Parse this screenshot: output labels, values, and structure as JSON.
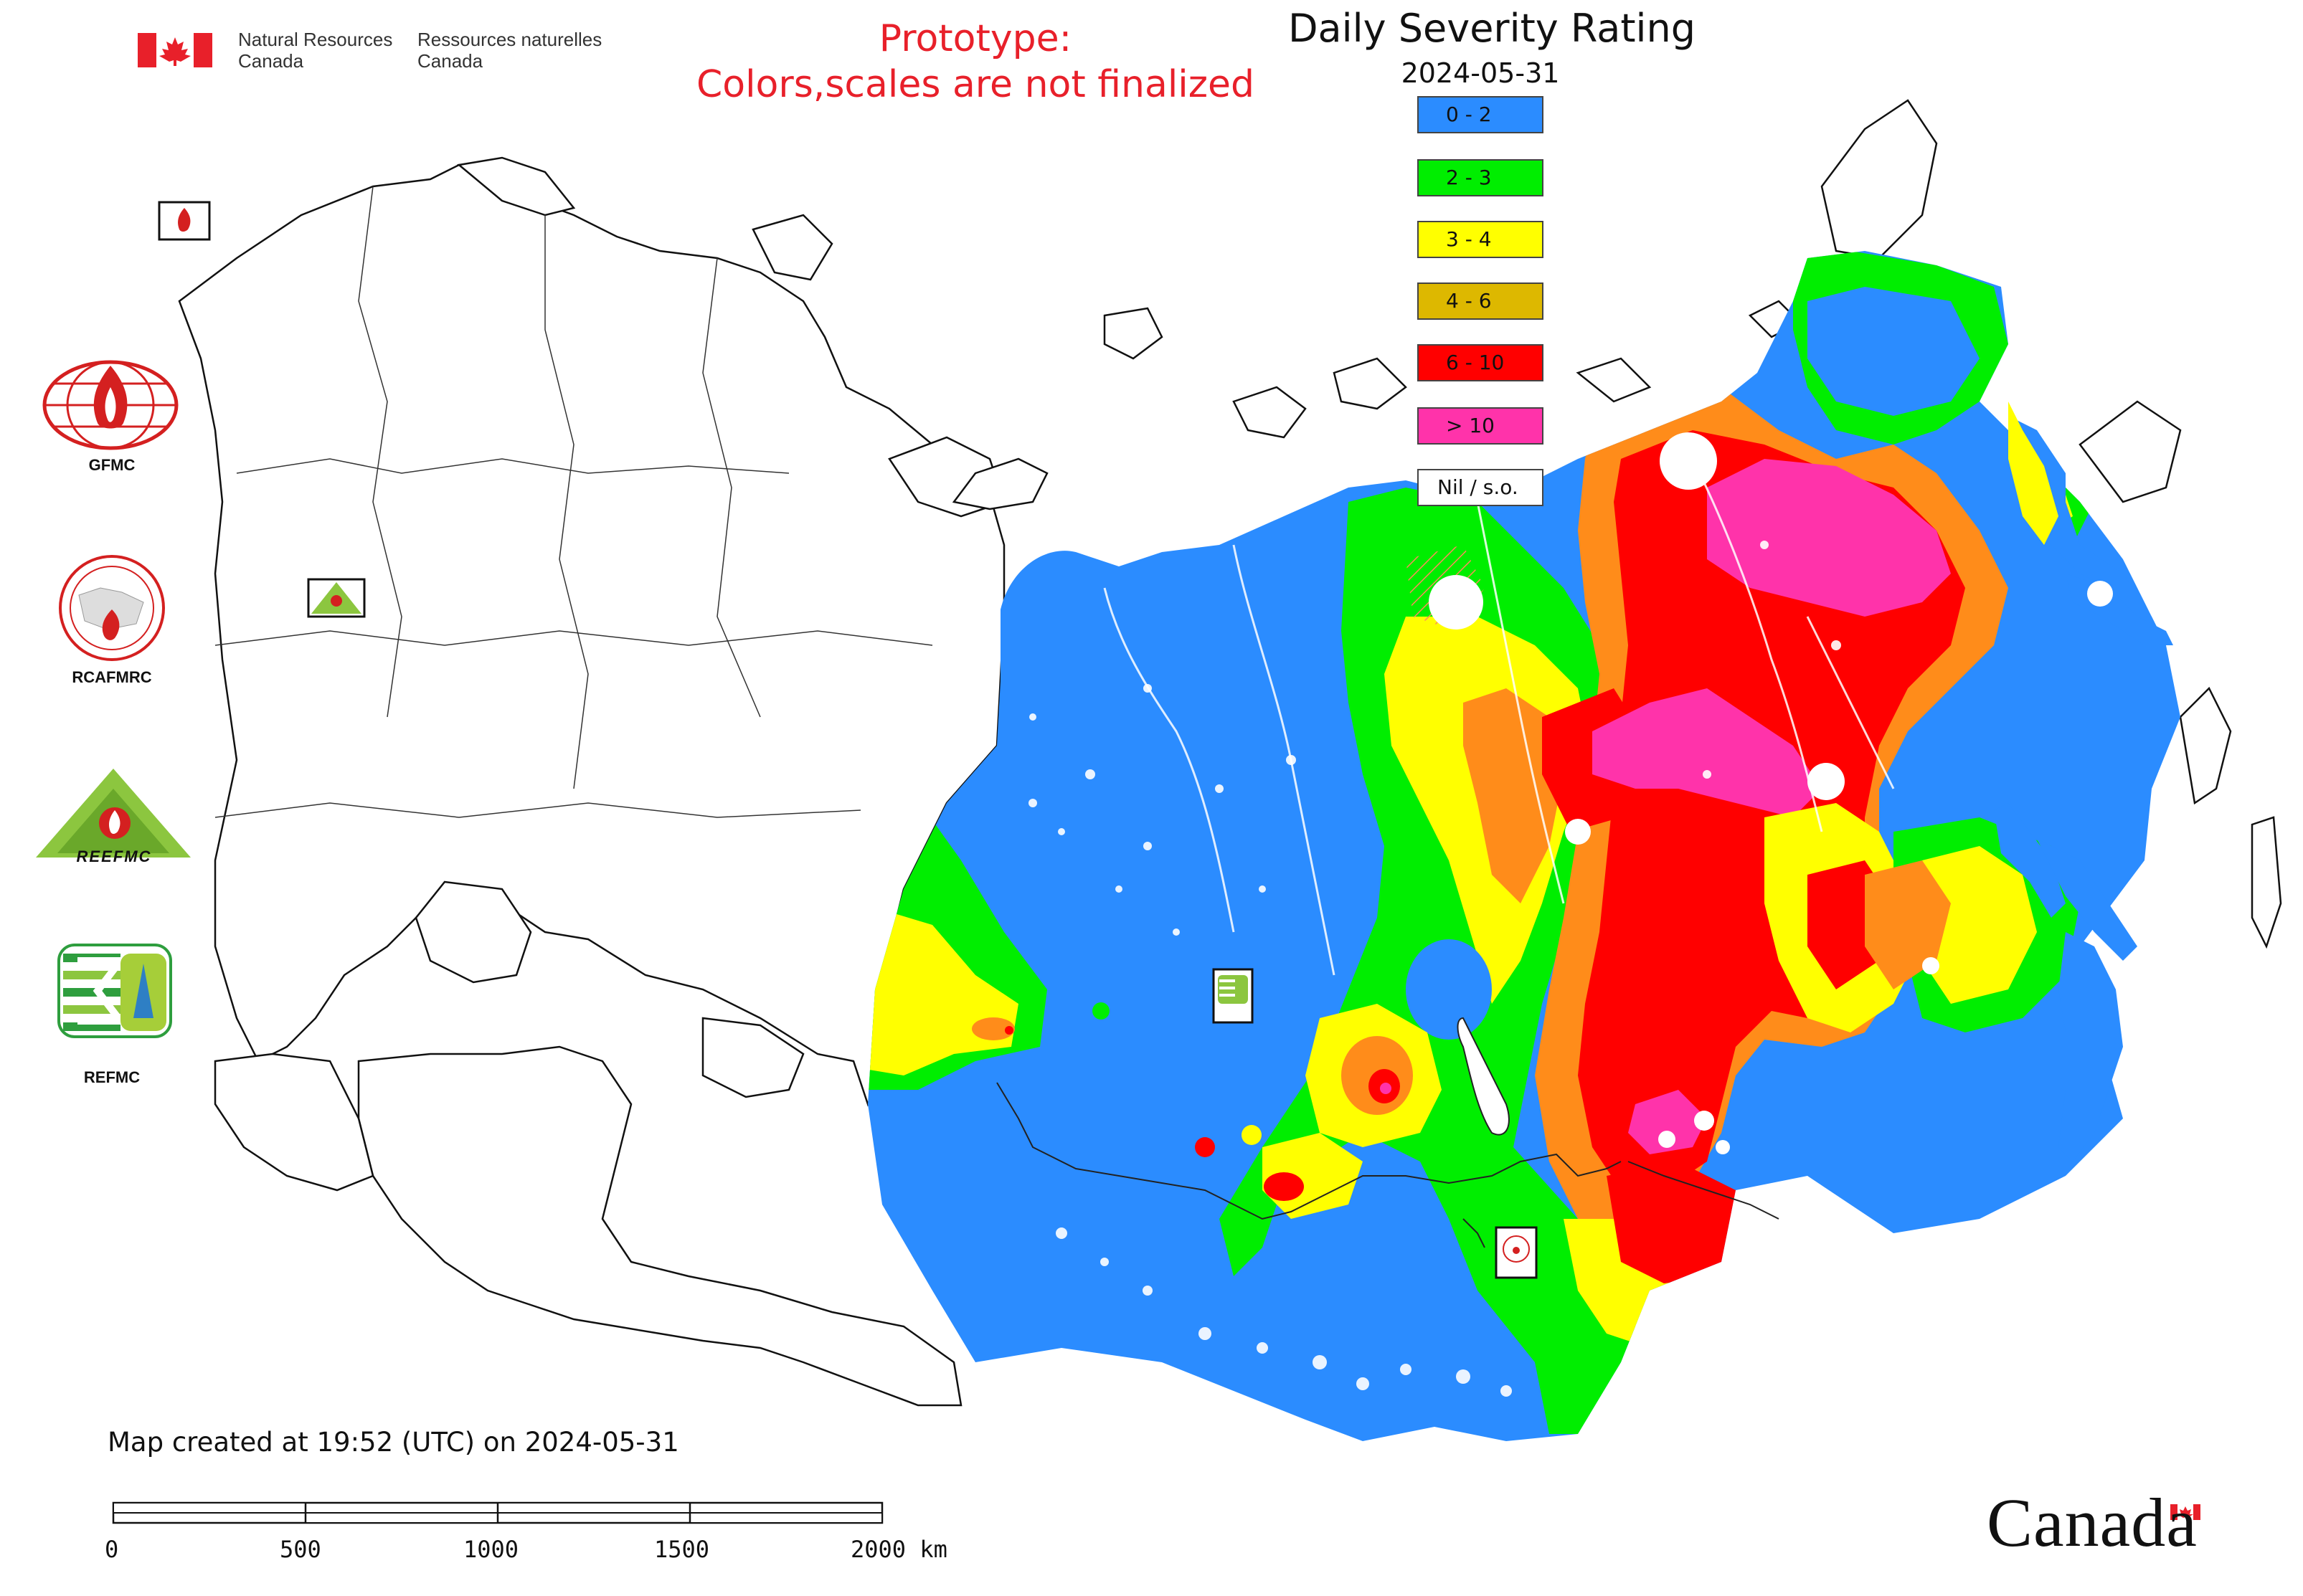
{
  "header": {
    "agency_en": [
      "Natural Resources",
      "Canada"
    ],
    "agency_fr": [
      "Ressources naturelles",
      "Canada"
    ],
    "prototype_line1": "Prototype:",
    "prototype_line2": "Colors,scales are not finalized"
  },
  "map": {
    "title": "Daily Severity Rating",
    "date": "2024-05-31",
    "legend": [
      {
        "label": "0 - 2",
        "color": "#2b8cff"
      },
      {
        "label": "2 - 3",
        "color": "#00ee00"
      },
      {
        "label": "3 - 4",
        "color": "#ffff00"
      },
      {
        "label": "4 - 6",
        "color": "#ddb800"
      },
      {
        "label": "6 - 10",
        "color": "#ff0000"
      },
      {
        "label": "> 10",
        "color": "#ff33aa"
      },
      {
        "label": "Nil / s.o.",
        "color": "#ffffff"
      }
    ],
    "created_text": "Map created at 19:52 (UTC) on 2024-05-31",
    "scale_labels": [
      "0",
      "500",
      "1000",
      "1500",
      "2000 km"
    ]
  },
  "organizations": [
    {
      "name": "GFMC",
      "icon": "gfmc-logo-icon"
    },
    {
      "name": "RCAFMRC",
      "icon": "rcafmrc-logo-icon"
    },
    {
      "name": "REEFMC",
      "icon": "reefmc-logo-icon"
    },
    {
      "name": "REFMC",
      "icon": "refmc-logo-icon"
    }
  ],
  "map_markers": [
    "gfmc-marker-icon",
    "reefmc-marker-icon",
    "refmc-marker-icon",
    "rcafmrc-marker-icon"
  ],
  "footer": {
    "wordmark": "Canada"
  },
  "colors": {
    "prototype_text": "#e8202a",
    "canada_red": "#e8202a"
  }
}
